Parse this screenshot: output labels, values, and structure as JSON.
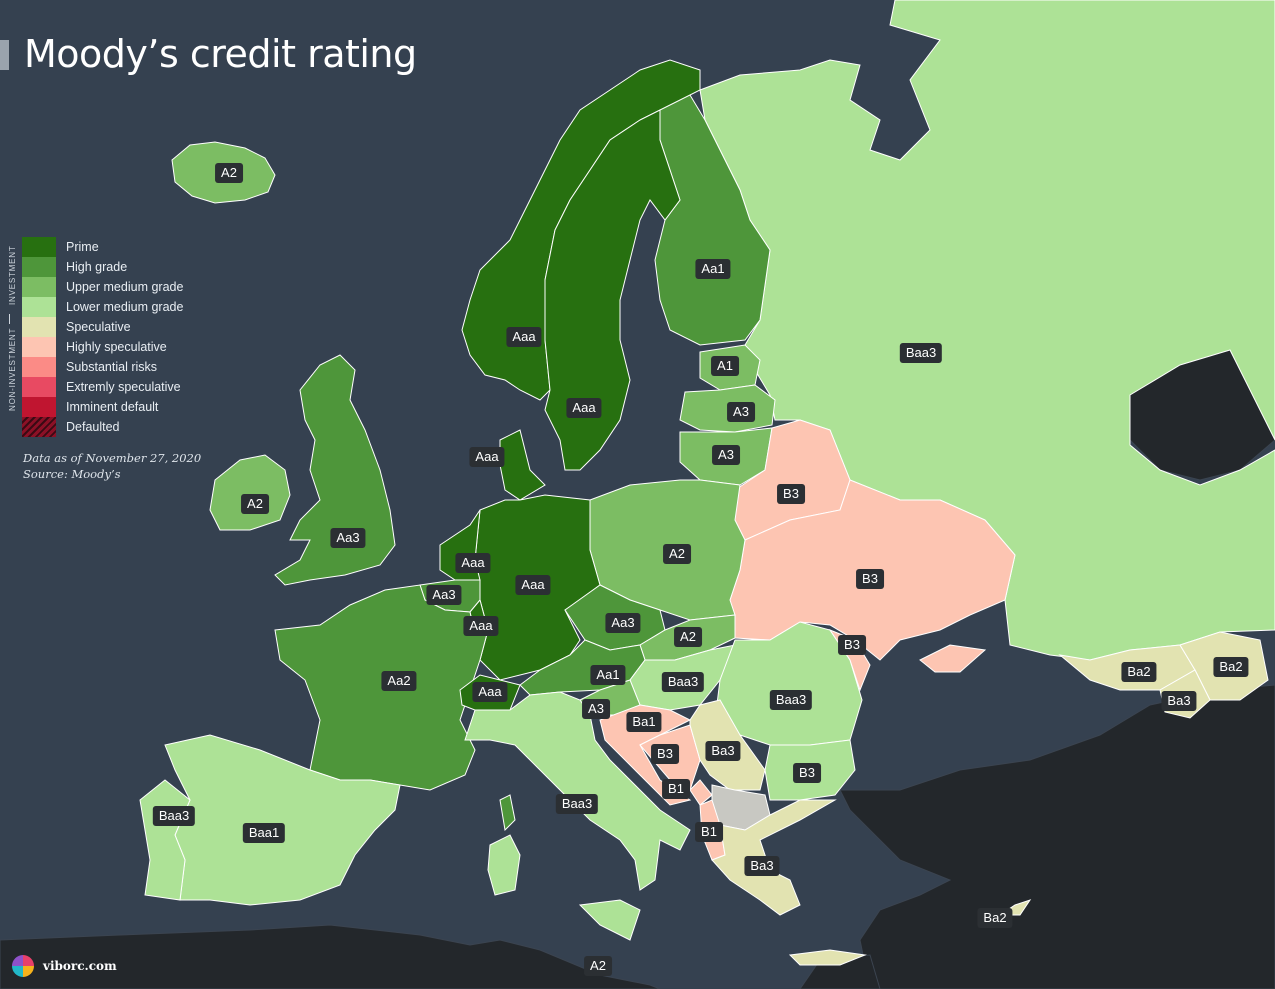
{
  "title": "Moody’s credit rating",
  "legend": {
    "group_investment": "INVESTMENT",
    "group_non_investment": "NON-INVESTMENT",
    "items": [
      {
        "label": "Prime",
        "color": "#277010"
      },
      {
        "label": "High grade",
        "color": "#4e963a"
      },
      {
        "label": "Upper medium grade",
        "color": "#7cbd63"
      },
      {
        "label": "Lower medium grade",
        "color": "#ade296"
      },
      {
        "label": "Speculative",
        "color": "#e2e3b1"
      },
      {
        "label": "Highly speculative",
        "color": "#fdc5b2"
      },
      {
        "label": "Substantial risks",
        "color": "#fb8b86"
      },
      {
        "label": "Extremly speculative",
        "color": "#e84a62"
      },
      {
        "label": "Imminent default",
        "color": "#c01530"
      },
      {
        "label": "Defaulted",
        "color": "#8b1026"
      }
    ]
  },
  "note": {
    "date_line": "Data as of November 27, 2020",
    "source_line": "Source: Moody’s"
  },
  "ratings": [
    {
      "country": "Iceland",
      "rating": "A2"
    },
    {
      "country": "Norway",
      "rating": "Aaa"
    },
    {
      "country": "Sweden",
      "rating": "Aaa"
    },
    {
      "country": "Finland",
      "rating": "Aa1"
    },
    {
      "country": "Russia",
      "rating": "Baa3"
    },
    {
      "country": "Estonia",
      "rating": "A1"
    },
    {
      "country": "Latvia",
      "rating": "A3"
    },
    {
      "country": "Lithuania",
      "rating": "A3"
    },
    {
      "country": "Denmark",
      "rating": "Aaa"
    },
    {
      "country": "Ireland",
      "rating": "A2"
    },
    {
      "country": "United Kingdom",
      "rating": "Aa3"
    },
    {
      "country": "Belarus",
      "rating": "B3"
    },
    {
      "country": "Poland",
      "rating": "A2"
    },
    {
      "country": "Netherlands",
      "rating": "Aaa"
    },
    {
      "country": "Germany",
      "rating": "Aaa"
    },
    {
      "country": "Belgium",
      "rating": "Aa3"
    },
    {
      "country": "Luxembourg",
      "rating": "Aaa"
    },
    {
      "country": "Ukraine",
      "rating": "B3"
    },
    {
      "country": "Czechia",
      "rating": "Aa3"
    },
    {
      "country": "Slovakia",
      "rating": "A2"
    },
    {
      "country": "Moldova",
      "rating": "B3"
    },
    {
      "country": "France",
      "rating": "Aa2"
    },
    {
      "country": "Austria",
      "rating": "Aa1"
    },
    {
      "country": "Switzerland",
      "rating": "Aaa"
    },
    {
      "country": "Hungary",
      "rating": "Baa3"
    },
    {
      "country": "Romania",
      "rating": "Baa3"
    },
    {
      "country": "Georgia",
      "rating": "Ba2"
    },
    {
      "country": "Azerbaijan",
      "rating": "Ba2"
    },
    {
      "country": "Armenia",
      "rating": "Ba3"
    },
    {
      "country": "Slovenia",
      "rating": "A3"
    },
    {
      "country": "Croatia",
      "rating": "Ba1"
    },
    {
      "country": "Bosnia and Herzegovina",
      "rating": "B3"
    },
    {
      "country": "Serbia",
      "rating": "Ba3"
    },
    {
      "country": "Bulgaria",
      "rating": "B3"
    },
    {
      "country": "Montenegro",
      "rating": "B1"
    },
    {
      "country": "Italy",
      "rating": "Baa3"
    },
    {
      "country": "Albania",
      "rating": "B1"
    },
    {
      "country": "Portugal",
      "rating": "Baa3"
    },
    {
      "country": "Spain",
      "rating": "Baa1"
    },
    {
      "country": "Greece",
      "rating": "Ba3"
    },
    {
      "country": "Cyprus",
      "rating": "Ba2"
    },
    {
      "country": "Malta",
      "rating": "A2"
    }
  ],
  "brand": "viborc.com"
}
